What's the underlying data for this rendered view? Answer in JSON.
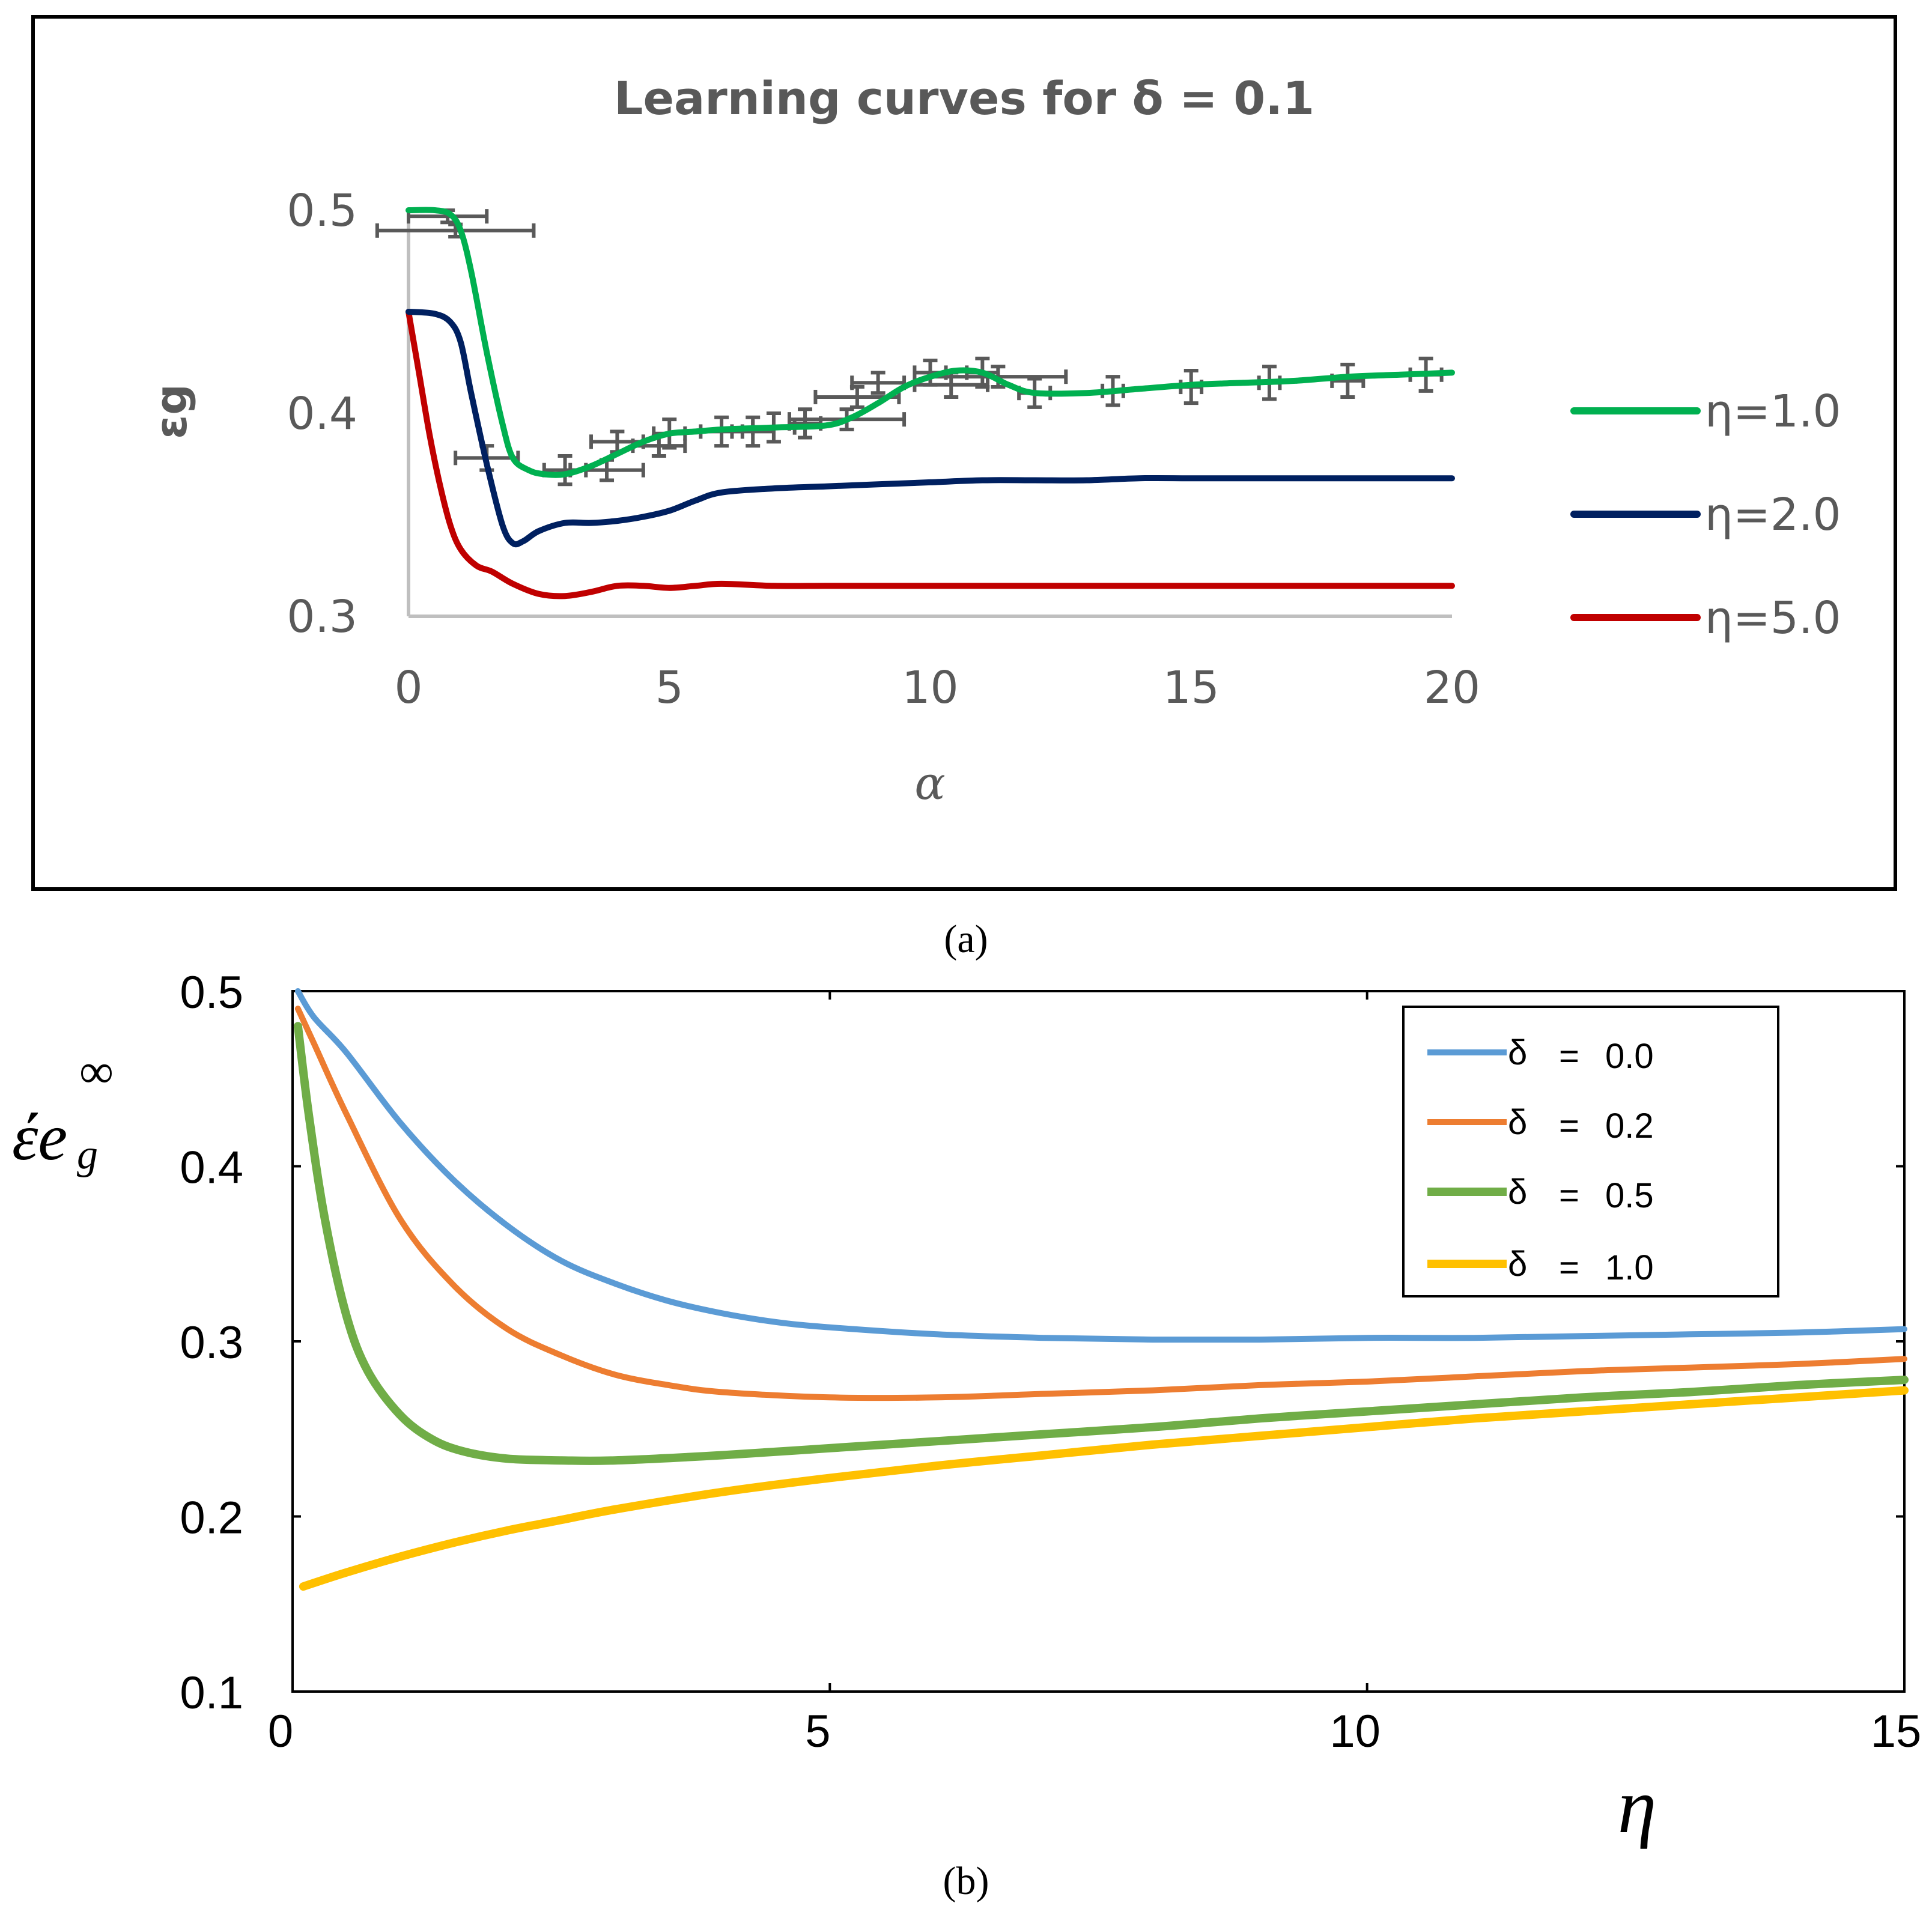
{
  "chart_data": [
    {
      "panel": "a",
      "type": "line",
      "title": "Learning curves for δ = 0.1",
      "xlabel": "α",
      "ylabel": "εg",
      "xlim": [
        0,
        20
      ],
      "ylim": [
        0.3,
        0.5
      ],
      "xticks": [
        0,
        5,
        10,
        15,
        20
      ],
      "yticks": [
        0.3,
        0.4,
        0.5
      ],
      "xtick_labels": [
        "0",
        "5",
        "10",
        "15",
        "20"
      ],
      "ytick_labels": [
        "0.3",
        "0.4",
        "0.5"
      ],
      "legend_position": "right",
      "series": [
        {
          "name": "η=1.0",
          "color": "#00b050",
          "x": [
            0,
            0.5,
            0.8,
            1.0,
            1.2,
            1.5,
            1.8,
            2.0,
            2.3,
            2.6,
            3.0,
            3.5,
            4.0,
            4.5,
            5.0,
            5.5,
            6.0,
            7.0,
            8.0,
            8.5,
            9.0,
            9.5,
            10.0,
            10.5,
            11.0,
            11.5,
            12.0,
            13.0,
            14.0,
            15.0,
            16.0,
            17.0,
            18.0,
            19.0,
            20.0
          ],
          "values": [
            0.5,
            0.5,
            0.498,
            0.49,
            0.47,
            0.43,
            0.395,
            0.378,
            0.372,
            0.37,
            0.37,
            0.374,
            0.38,
            0.386,
            0.39,
            0.391,
            0.392,
            0.393,
            0.394,
            0.398,
            0.405,
            0.413,
            0.418,
            0.421,
            0.42,
            0.414,
            0.41,
            0.41,
            0.412,
            0.414,
            0.415,
            0.416,
            0.418,
            0.419,
            0.42
          ]
        },
        {
          "name": "η=2.0",
          "color": "#002060",
          "x": [
            0,
            0.5,
            0.8,
            1.0,
            1.2,
            1.5,
            1.8,
            2.0,
            2.2,
            2.5,
            3.0,
            3.5,
            4.0,
            4.5,
            5.0,
            5.5,
            6.0,
            7.0,
            8.0,
            9.0,
            10.0,
            11.0,
            12.0,
            13.0,
            14.0,
            15.0,
            16.0,
            17.0,
            18.0,
            19.0,
            20.0
          ],
          "values": [
            0.45,
            0.449,
            0.445,
            0.435,
            0.41,
            0.375,
            0.345,
            0.336,
            0.337,
            0.342,
            0.346,
            0.346,
            0.347,
            0.349,
            0.352,
            0.357,
            0.361,
            0.363,
            0.364,
            0.365,
            0.366,
            0.367,
            0.367,
            0.367,
            0.368,
            0.368,
            0.368,
            0.368,
            0.368,
            0.368,
            0.368
          ]
        },
        {
          "name": "η=5.0",
          "color": "#c00000",
          "x": [
            0,
            0.2,
            0.4,
            0.6,
            0.8,
            1.0,
            1.3,
            1.6,
            2.0,
            2.5,
            3.0,
            3.5,
            4.0,
            4.5,
            5.0,
            5.5,
            6.0,
            7.0,
            8.0,
            9.0,
            10.0,
            11.0,
            12.0,
            13.0,
            14.0,
            15.0,
            16.0,
            17.0,
            18.0,
            19.0,
            20.0
          ],
          "values": [
            0.45,
            0.42,
            0.39,
            0.365,
            0.345,
            0.333,
            0.325,
            0.322,
            0.316,
            0.311,
            0.31,
            0.312,
            0.315,
            0.315,
            0.314,
            0.315,
            0.316,
            0.315,
            0.315,
            0.315,
            0.315,
            0.315,
            0.315,
            0.315,
            0.315,
            0.315,
            0.315,
            0.315,
            0.315,
            0.315,
            0.315
          ]
        }
      ],
      "error_bars": {
        "color": "#595959",
        "series": "η=1.0",
        "points": [
          {
            "x": 0.9,
            "y": 0.49,
            "xerr": 1.5,
            "yerr": 0.003
          },
          {
            "x": 0.75,
            "y": 0.497,
            "xerr": 0.75,
            "yerr": 0.003
          },
          {
            "x": 1.5,
            "y": 0.378,
            "xerr": 0.6,
            "yerr": 0.006
          },
          {
            "x": 3.0,
            "y": 0.372,
            "xerr": 0.4,
            "yerr": 0.007
          },
          {
            "x": 3.8,
            "y": 0.372,
            "xerr": 0.7,
            "yerr": 0.005
          },
          {
            "x": 4.0,
            "y": 0.386,
            "xerr": 0.5,
            "yerr": 0.005
          },
          {
            "x": 4.8,
            "y": 0.384,
            "xerr": 0.5,
            "yerr": 0.005
          },
          {
            "x": 5.0,
            "y": 0.39,
            "xerr": 0.3,
            "yerr": 0.007
          },
          {
            "x": 6.0,
            "y": 0.391,
            "xerr": 0.4,
            "yerr": 0.007
          },
          {
            "x": 6.6,
            "y": 0.391,
            "xerr": 0.4,
            "yerr": 0.007
          },
          {
            "x": 7.0,
            "y": 0.393,
            "xerr": 0.4,
            "yerr": 0.007
          },
          {
            "x": 7.6,
            "y": 0.395,
            "xerr": 0.3,
            "yerr": 0.007
          },
          {
            "x": 8.4,
            "y": 0.397,
            "xerr": 1.1,
            "yerr": 0.005
          },
          {
            "x": 8.6,
            "y": 0.408,
            "xerr": 0.8,
            "yerr": 0.005
          },
          {
            "x": 9.0,
            "y": 0.415,
            "xerr": 0.5,
            "yerr": 0.005
          },
          {
            "x": 10.0,
            "y": 0.42,
            "xerr": 0.3,
            "yerr": 0.006
          },
          {
            "x": 10.4,
            "y": 0.414,
            "xerr": 0.7,
            "yerr": 0.006
          },
          {
            "x": 11.0,
            "y": 0.42,
            "xerr": 0.3,
            "yerr": 0.007
          },
          {
            "x": 11.3,
            "y": 0.418,
            "xerr": 1.3,
            "yerr": 0.005
          },
          {
            "x": 12.0,
            "y": 0.41,
            "xerr": 0.3,
            "yerr": 0.007
          },
          {
            "x": 13.5,
            "y": 0.411,
            "xerr": 0.2,
            "yerr": 0.007
          },
          {
            "x": 15.0,
            "y": 0.413,
            "xerr": 0.2,
            "yerr": 0.008
          },
          {
            "x": 16.5,
            "y": 0.415,
            "xerr": 0.2,
            "yerr": 0.008
          },
          {
            "x": 18.0,
            "y": 0.416,
            "xerr": 0.3,
            "yerr": 0.008
          },
          {
            "x": 19.5,
            "y": 0.419,
            "xerr": 0.3,
            "yerr": 0.008
          }
        ]
      }
    },
    {
      "panel": "b",
      "type": "line",
      "title": "",
      "xlabel": "η",
      "ylabel_main": "έe",
      "ylabel_sub": "g",
      "ylabel_sup": "∞",
      "xlim": [
        0,
        15
      ],
      "ylim": [
        0.1,
        0.5
      ],
      "xticks": [
        0,
        5,
        10,
        15
      ],
      "yticks": [
        0.1,
        0.2,
        0.3,
        0.4,
        0.5
      ],
      "xtick_labels": [
        "0",
        "5",
        "10",
        "15"
      ],
      "ytick_labels": [
        "0.1",
        "0.2",
        "0.3",
        "0.4",
        "0.5"
      ],
      "legend_position": "top-right",
      "series": [
        {
          "name": "δ  =  0.0",
          "legend_symbol": "δ",
          "legend_eq": "=",
          "legend_value": "0.0",
          "color": "#5b9bd5",
          "width": 5,
          "x": [
            0.05,
            0.2,
            0.5,
            1.0,
            1.5,
            2.0,
            2.5,
            3.0,
            3.5,
            4.0,
            4.5,
            5.0,
            6.0,
            7.0,
            8.0,
            9.0,
            10.0,
            11.0,
            12.0,
            13.0,
            14.0,
            15.0
          ],
          "values": [
            0.5,
            0.485,
            0.465,
            0.425,
            0.392,
            0.366,
            0.346,
            0.333,
            0.323,
            0.316,
            0.311,
            0.308,
            0.304,
            0.302,
            0.301,
            0.301,
            0.302,
            0.302,
            0.303,
            0.304,
            0.305,
            0.307
          ]
        },
        {
          "name": "δ  =  0.2",
          "legend_symbol": "δ",
          "legend_eq": "=",
          "legend_value": "0.2",
          "color": "#ed7d31",
          "width": 5,
          "x": [
            0.05,
            0.2,
            0.5,
            1.0,
            1.5,
            2.0,
            2.5,
            3.0,
            3.5,
            4.0,
            5.0,
            6.0,
            7.0,
            8.0,
            9.0,
            10.0,
            11.0,
            12.0,
            13.0,
            14.0,
            15.0
          ],
          "values": [
            0.49,
            0.47,
            0.43,
            0.37,
            0.332,
            0.307,
            0.292,
            0.281,
            0.275,
            0.271,
            0.268,
            0.268,
            0.27,
            0.272,
            0.275,
            0.277,
            0.28,
            0.283,
            0.285,
            0.287,
            0.29
          ]
        },
        {
          "name": "δ  =  0.5",
          "legend_symbol": "δ",
          "legend_eq": "=",
          "legend_value": "0.5",
          "color": "#70ad47",
          "width": 7,
          "x": [
            0.05,
            0.15,
            0.3,
            0.5,
            0.7,
            1.0,
            1.3,
            1.6,
            2.0,
            2.5,
            3.0,
            4.0,
            5.0,
            6.0,
            7.0,
            8.0,
            9.0,
            10.0,
            11.0,
            12.0,
            13.0,
            14.0,
            15.0
          ],
          "values": [
            0.48,
            0.43,
            0.37,
            0.315,
            0.283,
            0.258,
            0.244,
            0.237,
            0.233,
            0.232,
            0.232,
            0.235,
            0.239,
            0.243,
            0.247,
            0.251,
            0.256,
            0.26,
            0.264,
            0.268,
            0.271,
            0.275,
            0.278
          ]
        },
        {
          "name": "δ  =  1.0",
          "legend_symbol": "δ",
          "legend_eq": "=",
          "legend_value": "1.0",
          "color": "#ffc000",
          "width": 7,
          "x": [
            0.1,
            0.5,
            1.0,
            1.5,
            2.0,
            2.5,
            3.0,
            4.0,
            5.0,
            6.0,
            7.0,
            8.0,
            9.0,
            10.0,
            11.0,
            12.0,
            13.0,
            14.0,
            15.0
          ],
          "values": [
            0.16,
            0.168,
            0.177,
            0.185,
            0.192,
            0.198,
            0.204,
            0.214,
            0.222,
            0.229,
            0.235,
            0.241,
            0.246,
            0.251,
            0.256,
            0.26,
            0.264,
            0.268,
            0.272
          ]
        }
      ]
    }
  ],
  "captions": {
    "a": "(a)",
    "b": "(b)"
  }
}
